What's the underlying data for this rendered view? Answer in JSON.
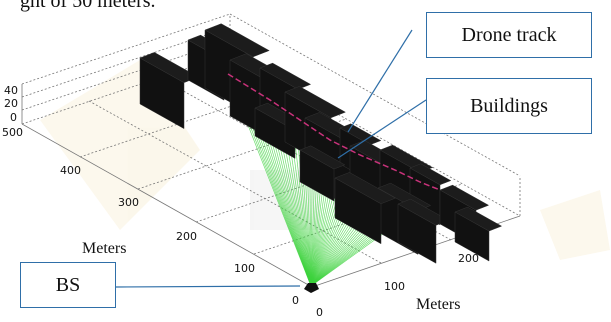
{
  "header": {
    "text": "ght of 50 meters."
  },
  "callouts": {
    "drone_track": "Drone track",
    "buildings": "Buildings",
    "bs": "BS"
  },
  "axes": {
    "y_title": "Meters",
    "x_title": "Meters",
    "z_ticks": [
      "40",
      "20",
      "0"
    ],
    "y_ticks": [
      "500",
      "400",
      "300",
      "200",
      "100",
      "0"
    ],
    "x_ticks": [
      "0",
      "100",
      "200"
    ]
  },
  "colors": {
    "building": "#111111",
    "signal": "#3cd23c",
    "drone_track": "#c8327a",
    "callout_border": "#2f6fa8"
  }
}
